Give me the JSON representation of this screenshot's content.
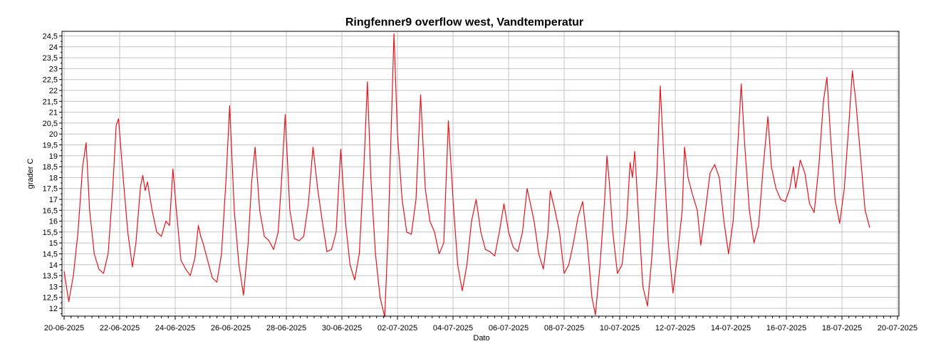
{
  "chart_data": {
    "type": "line",
    "title": "Ringfenner9 overflow west, Vandtemperatur",
    "xlabel": "Dato",
    "ylabel": "grader C",
    "x_range": [
      "2025-06-20",
      "2025-07-20"
    ],
    "ylim": [
      11.5,
      24.6
    ],
    "y_ticks": [
      "12",
      "12,5",
      "13",
      "13,5",
      "14",
      "14,5",
      "15",
      "15,5",
      "16",
      "16,5",
      "17",
      "17,5",
      "18",
      "18,5",
      "19",
      "19,5",
      "20",
      "20,5",
      "21",
      "21,5",
      "22",
      "22,5",
      "23",
      "23,5",
      "24",
      "24,5"
    ],
    "x_ticks": [
      "20-06-2025",
      "22-06-2025",
      "24-06-2025",
      "26-06-2025",
      "28-06-2025",
      "30-06-2025",
      "02-07-2025",
      "04-07-2025",
      "06-07-2025",
      "08-07-2025",
      "10-07-2025",
      "12-07-2025",
      "14-07-2025",
      "16-07-2025",
      "18-07-2025",
      "20-07-2025"
    ],
    "grid": true,
    "series": [
      {
        "color": "#e8141c",
        "points": [
          [
            "2025-06-20 00:00",
            13.7
          ],
          [
            "2025-06-20 04:00",
            12.3
          ],
          [
            "2025-06-20 08:00",
            13.5
          ],
          [
            "2025-06-20 12:00",
            15.5
          ],
          [
            "2025-06-20 16:00",
            18.5
          ],
          [
            "2025-06-20 19:00",
            19.6
          ],
          [
            "2025-06-20 22:00",
            16.5
          ],
          [
            "2025-06-21 02:00",
            14.5
          ],
          [
            "2025-06-21 06:00",
            13.8
          ],
          [
            "2025-06-21 10:00",
            13.6
          ],
          [
            "2025-06-21 14:00",
            14.5
          ],
          [
            "2025-06-21 18:00",
            17.5
          ],
          [
            "2025-06-21 21:00",
            20.4
          ],
          [
            "2025-06-21 23:00",
            20.7
          ],
          [
            "2025-06-22 03:00",
            18.0
          ],
          [
            "2025-06-22 07:00",
            15.5
          ],
          [
            "2025-06-22 11:00",
            13.9
          ],
          [
            "2025-06-22 14:00",
            15.0
          ],
          [
            "2025-06-22 18:00",
            17.6
          ],
          [
            "2025-06-22 20:00",
            18.1
          ],
          [
            "2025-06-22 22:00",
            17.4
          ],
          [
            "2025-06-23 00:00",
            17.8
          ],
          [
            "2025-06-23 04:00",
            16.5
          ],
          [
            "2025-06-23 08:00",
            15.5
          ],
          [
            "2025-06-23 12:00",
            15.3
          ],
          [
            "2025-06-23 16:00",
            16.0
          ],
          [
            "2025-06-23 19:00",
            15.8
          ],
          [
            "2025-06-23 22:00",
            18.4
          ],
          [
            "2025-06-24 01:00",
            16.5
          ],
          [
            "2025-06-24 05:00",
            14.2
          ],
          [
            "2025-06-24 09:00",
            13.8
          ],
          [
            "2025-06-24 13:00",
            13.5
          ],
          [
            "2025-06-24 17:00",
            14.3
          ],
          [
            "2025-06-24 20:00",
            15.8
          ],
          [
            "2025-06-24 22:00",
            15.3
          ],
          [
            "2025-06-25 00:00",
            15.0
          ],
          [
            "2025-06-25 04:00",
            14.2
          ],
          [
            "2025-06-25 08:00",
            13.4
          ],
          [
            "2025-06-25 12:00",
            13.2
          ],
          [
            "2025-06-25 16:00",
            14.5
          ],
          [
            "2025-06-25 20:00",
            18.0
          ],
          [
            "2025-06-25 23:00",
            21.3
          ],
          [
            "2025-06-26 03:00",
            16.5
          ],
          [
            "2025-06-26 07:00",
            14.0
          ],
          [
            "2025-06-26 11:00",
            12.6
          ],
          [
            "2025-06-26 15:00",
            15.0
          ],
          [
            "2025-06-26 18:00",
            17.8
          ],
          [
            "2025-06-26 21:00",
            19.4
          ],
          [
            "2025-06-27 01:00",
            16.5
          ],
          [
            "2025-06-27 05:00",
            15.3
          ],
          [
            "2025-06-27 09:00",
            15.1
          ],
          [
            "2025-06-27 13:00",
            14.7
          ],
          [
            "2025-06-27 17:00",
            15.5
          ],
          [
            "2025-06-27 20:00",
            18.0
          ],
          [
            "2025-06-27 23:00",
            20.9
          ],
          [
            "2025-06-28 03:00",
            16.5
          ],
          [
            "2025-06-28 07:00",
            15.2
          ],
          [
            "2025-06-28 11:00",
            15.1
          ],
          [
            "2025-06-28 15:00",
            15.3
          ],
          [
            "2025-06-28 19:00",
            16.8
          ],
          [
            "2025-06-28 23:00",
            19.4
          ],
          [
            "2025-06-29 03:00",
            17.5
          ],
          [
            "2025-06-29 07:00",
            16.0
          ],
          [
            "2025-06-29 11:00",
            14.6
          ],
          [
            "2025-06-29 15:00",
            14.7
          ],
          [
            "2025-06-29 19:00",
            15.5
          ],
          [
            "2025-06-29 23:00",
            19.3
          ],
          [
            "2025-06-30 03:00",
            16.0
          ],
          [
            "2025-06-30 07:00",
            14.0
          ],
          [
            "2025-06-30 11:00",
            13.3
          ],
          [
            "2025-06-30 15:00",
            14.5
          ],
          [
            "2025-06-30 19:00",
            18.5
          ],
          [
            "2025-06-30 22:00",
            22.4
          ],
          [
            "2025-07-01 01:00",
            18.0
          ],
          [
            "2025-07-01 05:00",
            14.5
          ],
          [
            "2025-07-01 09:00",
            12.5
          ],
          [
            "2025-07-01 13:00",
            11.6
          ],
          [
            "2025-07-01 16:00",
            15.5
          ],
          [
            "2025-07-01 19:00",
            21.0
          ],
          [
            "2025-07-01 21:00",
            24.6
          ],
          [
            "2025-07-02 00:00",
            20.0
          ],
          [
            "2025-07-02 04:00",
            17.0
          ],
          [
            "2025-07-02 08:00",
            15.5
          ],
          [
            "2025-07-02 12:00",
            15.4
          ],
          [
            "2025-07-02 16:00",
            17.0
          ],
          [
            "2025-07-02 20:00",
            21.8
          ],
          [
            "2025-07-03 00:00",
            17.5
          ],
          [
            "2025-07-03 04:00",
            16.0
          ],
          [
            "2025-07-03 08:00",
            15.5
          ],
          [
            "2025-07-03 12:00",
            14.5
          ],
          [
            "2025-07-03 16:00",
            15.0
          ],
          [
            "2025-07-03 20:00",
            20.6
          ],
          [
            "2025-07-04 00:00",
            17.0
          ],
          [
            "2025-07-04 04:00",
            14.0
          ],
          [
            "2025-07-04 08:00",
            12.8
          ],
          [
            "2025-07-04 12:00",
            14.0
          ],
          [
            "2025-07-04 16:00",
            16.0
          ],
          [
            "2025-07-04 20:00",
            17.0
          ],
          [
            "2025-07-05 00:00",
            15.5
          ],
          [
            "2025-07-05 04:00",
            14.7
          ],
          [
            "2025-07-05 08:00",
            14.6
          ],
          [
            "2025-07-05 12:00",
            14.4
          ],
          [
            "2025-07-05 16:00",
            15.5
          ],
          [
            "2025-07-05 20:00",
            16.8
          ],
          [
            "2025-07-06 00:00",
            15.5
          ],
          [
            "2025-07-06 04:00",
            14.8
          ],
          [
            "2025-07-06 08:00",
            14.6
          ],
          [
            "2025-07-06 12:00",
            15.5
          ],
          [
            "2025-07-06 16:00",
            17.5
          ],
          [
            "2025-07-06 18:00",
            17.0
          ],
          [
            "2025-07-06 22:00",
            16.0
          ],
          [
            "2025-07-07 02:00",
            14.5
          ],
          [
            "2025-07-07 06:00",
            13.8
          ],
          [
            "2025-07-07 10:00",
            15.5
          ],
          [
            "2025-07-07 12:00",
            17.4
          ],
          [
            "2025-07-07 16:00",
            16.5
          ],
          [
            "2025-07-07 20:00",
            15.5
          ],
          [
            "2025-07-08 00:00",
            13.6
          ],
          [
            "2025-07-08 04:00",
            14.0
          ],
          [
            "2025-07-08 08:00",
            15.0
          ],
          [
            "2025-07-08 12:00",
            16.2
          ],
          [
            "2025-07-08 16:00",
            16.9
          ],
          [
            "2025-07-08 20:00",
            15.0
          ],
          [
            "2025-07-09 00:00",
            12.5
          ],
          [
            "2025-07-09 03:00",
            11.7
          ],
          [
            "2025-07-09 07:00",
            14.0
          ],
          [
            "2025-07-09 11:00",
            17.0
          ],
          [
            "2025-07-09 13:00",
            19.0
          ],
          [
            "2025-07-09 15:00",
            17.8
          ],
          [
            "2025-07-09 18:00",
            15.5
          ],
          [
            "2025-07-09 22:00",
            13.6
          ],
          [
            "2025-07-10 02:00",
            14.0
          ],
          [
            "2025-07-10 06:00",
            16.0
          ],
          [
            "2025-07-10 09:00",
            18.7
          ],
          [
            "2025-07-10 11:00",
            18.0
          ],
          [
            "2025-07-10 13:00",
            19.2
          ],
          [
            "2025-07-10 16:00",
            16.5
          ],
          [
            "2025-07-10 20:00",
            13.0
          ],
          [
            "2025-07-11 00:00",
            12.1
          ],
          [
            "2025-07-11 04:00",
            14.5
          ],
          [
            "2025-07-11 08:00",
            18.0
          ],
          [
            "2025-07-11 11:00",
            22.2
          ],
          [
            "2025-07-11 14:00",
            19.0
          ],
          [
            "2025-07-11 18:00",
            15.0
          ],
          [
            "2025-07-11 22:00",
            12.7
          ],
          [
            "2025-07-12 02:00",
            14.5
          ],
          [
            "2025-07-12 06:00",
            16.5
          ],
          [
            "2025-07-12 08:00",
            19.4
          ],
          [
            "2025-07-12 11:00",
            18.0
          ],
          [
            "2025-07-12 15:00",
            17.2
          ],
          [
            "2025-07-12 19:00",
            16.5
          ],
          [
            "2025-07-12 22:00",
            14.9
          ],
          [
            "2025-07-13 02:00",
            16.5
          ],
          [
            "2025-07-13 06:00",
            18.2
          ],
          [
            "2025-07-13 10:00",
            18.6
          ],
          [
            "2025-07-13 14:00",
            18.0
          ],
          [
            "2025-07-13 18:00",
            16.0
          ],
          [
            "2025-07-13 22:00",
            14.5
          ],
          [
            "2025-07-14 02:00",
            16.0
          ],
          [
            "2025-07-14 06:00",
            19.5
          ],
          [
            "2025-07-14 09:00",
            22.3
          ],
          [
            "2025-07-14 12:00",
            19.5
          ],
          [
            "2025-07-14 16:00",
            16.5
          ],
          [
            "2025-07-14 20:00",
            15.0
          ],
          [
            "2025-07-15 00:00",
            15.8
          ],
          [
            "2025-07-15 04:00",
            18.5
          ],
          [
            "2025-07-15 08:00",
            20.8
          ],
          [
            "2025-07-15 11:00",
            18.5
          ],
          [
            "2025-07-15 15:00",
            17.5
          ],
          [
            "2025-07-15 19:00",
            17.0
          ],
          [
            "2025-07-15 23:00",
            16.9
          ],
          [
            "2025-07-16 03:00",
            17.5
          ],
          [
            "2025-07-16 06:00",
            18.5
          ],
          [
            "2025-07-16 08:00",
            17.5
          ],
          [
            "2025-07-16 12:00",
            18.8
          ],
          [
            "2025-07-16 16:00",
            18.2
          ],
          [
            "2025-07-16 20:00",
            16.8
          ],
          [
            "2025-07-17 00:00",
            16.4
          ],
          [
            "2025-07-17 04:00",
            18.5
          ],
          [
            "2025-07-17 08:00",
            21.5
          ],
          [
            "2025-07-17 11:00",
            22.6
          ],
          [
            "2025-07-17 14:00",
            20.0
          ],
          [
            "2025-07-17 18:00",
            17.0
          ],
          [
            "2025-07-17 22:00",
            15.9
          ],
          [
            "2025-07-18 02:00",
            17.5
          ],
          [
            "2025-07-18 06:00",
            20.5
          ],
          [
            "2025-07-18 09:00",
            22.9
          ],
          [
            "2025-07-18 12:00",
            21.5
          ],
          [
            "2025-07-18 16:00",
            19.0
          ],
          [
            "2025-07-18 20:00",
            16.5
          ],
          [
            "2025-07-19 00:00",
            15.7
          ]
        ]
      }
    ]
  }
}
